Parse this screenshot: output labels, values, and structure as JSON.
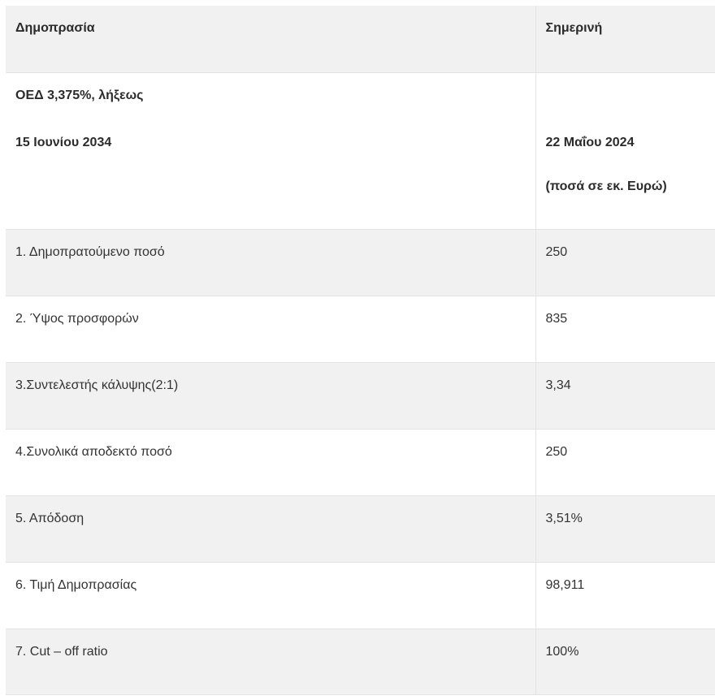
{
  "table": {
    "header": {
      "col1": "Δημοπρασία",
      "col2": "Σημερινή"
    },
    "subheader": {
      "col1_line1": "ΟΕΔ 3,375%, λήξεως",
      "col1_line2": "15 Ιουνίου 2034",
      "col2_line1": "22 Μαΐου  2024",
      "col2_line2": "(ποσά σε εκ. Ευρώ)"
    },
    "rows": [
      {
        "label": "1. Δημοπρατούμενο ποσό",
        "value": "250"
      },
      {
        "label": "2. Ύψος προσφορών",
        "value": "835"
      },
      {
        "label": "3.Συντελεστής κάλυψης(2:1)",
        "value": "3,34"
      },
      {
        "label": "4.Συνολικά αποδεκτό ποσό",
        "value": "250"
      },
      {
        "label": "5. Απόδοση",
        "value": "3,51%"
      },
      {
        "label": "6. Τιμή Δημοπρασίας",
        "value": "98,911"
      },
      {
        "label": "7. Cut – off ratio",
        "value": "100%"
      }
    ],
    "colors": {
      "shade": "#f1f1f1",
      "border": "#e3e3e3",
      "text": "#333333"
    }
  }
}
